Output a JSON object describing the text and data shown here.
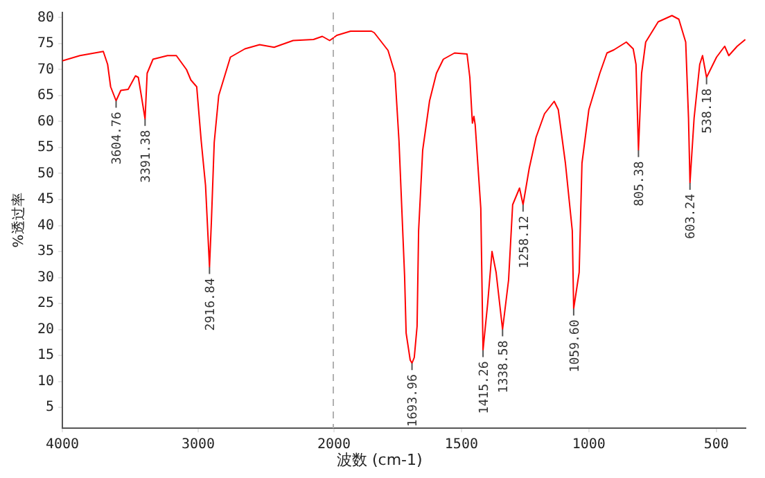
{
  "chart_data": [
    {
      "type": "line",
      "ylabel": "%透过率",
      "xlim": [
        4000,
        2000
      ],
      "xticks": [
        4000,
        3000,
        2000
      ],
      "ylim": [
        1,
        81
      ],
      "yticks": [
        5,
        10,
        15,
        20,
        25,
        30,
        35,
        40,
        45,
        50,
        55,
        60,
        65,
        70,
        75,
        80
      ],
      "grid": false,
      "legend": false,
      "marker": "none",
      "line_style": "solid",
      "ref_lines": [
        {
          "axis": "x",
          "value": 2000,
          "color": "#b0b0b0",
          "line_style": "dashed"
        }
      ],
      "series": [
        {
          "color": "#ff0000",
          "x": [
            4000,
            3871,
            3699,
            3667,
            3645,
            3604.76,
            3570,
            3516,
            3462,
            3441,
            3419,
            3391.38,
            3376,
            3333,
            3226,
            3161,
            3086,
            3054,
            3011,
            2978,
            2946,
            2916.84,
            2903,
            2882,
            2849,
            2763,
            2656,
            2548,
            2441,
            2301,
            2151,
            2086,
            2032,
            2000
          ],
          "values": [
            71.7,
            72.7,
            73.5,
            71,
            66.7,
            64,
            66,
            66.2,
            68.8,
            68.5,
            65,
            60.5,
            69.3,
            72,
            72.7,
            72.7,
            70,
            68,
            66.7,
            56.3,
            47.7,
            32,
            40.7,
            56,
            65,
            72.4,
            74,
            74.8,
            74.3,
            75.6,
            75.8,
            76.4,
            75.6,
            76.2
          ]
        }
      ],
      "annotations": [
        {
          "text": "3604.76",
          "x": 3604.76,
          "y": 64
        },
        {
          "text": "3391.38",
          "x": 3391.38,
          "y": 60.5
        },
        {
          "text": "2916.84",
          "x": 2916.84,
          "y": 32
        }
      ]
    },
    {
      "type": "line",
      "xlabel": "波数 (cm-1)",
      "xlim": [
        2000,
        385
      ],
      "xticks": [
        1500,
        1000,
        500
      ],
      "ylim": [
        1,
        81
      ],
      "tick_labels": "x",
      "grid": false,
      "legend": false,
      "marker": "none",
      "line_style": "solid",
      "series": [
        {
          "color": "#ff0000",
          "x": [
            2000,
            1989,
            1935,
            1853,
            1842,
            1788,
            1761,
            1745,
            1723,
            1717,
            1701,
            1693.96,
            1685,
            1674,
            1668,
            1652,
            1625,
            1598,
            1571,
            1527,
            1478,
            1467,
            1457,
            1451,
            1446,
            1424,
            1415.26,
            1397,
            1380,
            1364,
            1338.58,
            1315,
            1299,
            1272,
            1258.12,
            1234,
            1207,
            1174,
            1136,
            1120,
            1092,
            1065,
            1059.6,
            1038,
            1027,
            1000,
            957,
            929,
            902,
            853,
            826,
            815,
            805.38,
            793,
            777,
            728,
            674,
            647,
            620,
            609,
            603.24,
            587,
            565,
            554,
            538.18,
            499,
            467,
            451,
            418,
            386
          ],
          "values": [
            76.2,
            76.6,
            77.4,
            77.4,
            77.1,
            73.7,
            69.3,
            56.3,
            30.3,
            19.3,
            14.1,
            13.5,
            14.6,
            20.6,
            39,
            54.5,
            64,
            69.3,
            72,
            73.2,
            73,
            68.5,
            59.7,
            61,
            59.4,
            43.3,
            16,
            25,
            35,
            31,
            20,
            29.5,
            44,
            47.2,
            44,
            51,
            57,
            61.5,
            63.9,
            62.3,
            52,
            39,
            24,
            31,
            52,
            62.3,
            69.3,
            73.2,
            73.8,
            75.3,
            74,
            71,
            54.5,
            69.3,
            75.3,
            79.2,
            80.4,
            79.7,
            75.3,
            60.7,
            48.2,
            60.7,
            71,
            72.7,
            68.5,
            72.4,
            74.5,
            72.7,
            74.5,
            75.8
          ]
        }
      ],
      "annotations": [
        {
          "text": "1693.96",
          "x": 1693.96,
          "y": 13.5
        },
        {
          "text": "1415.26",
          "x": 1415.26,
          "y": 16
        },
        {
          "text": "1338.58",
          "x": 1338.58,
          "y": 20
        },
        {
          "text": "1258.12",
          "x": 1258.12,
          "y": 44
        },
        {
          "text": "1059.60",
          "x": 1059.6,
          "y": 24
        },
        {
          "text": "805.38",
          "x": 805.38,
          "y": 54.5
        },
        {
          "text": "603.24",
          "x": 603.24,
          "y": 48.2
        },
        {
          "text": "538.18",
          "x": 538.18,
          "y": 68.5
        }
      ]
    }
  ]
}
